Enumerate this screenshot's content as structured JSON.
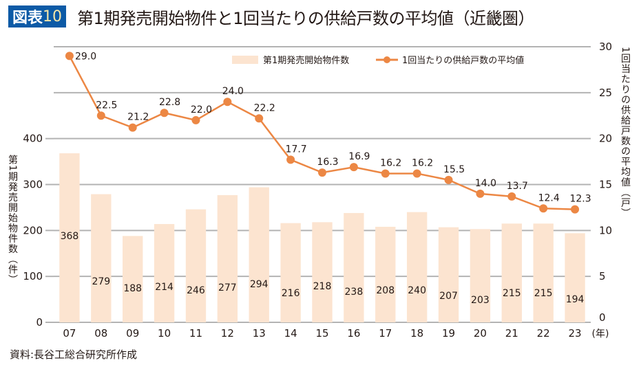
{
  "header": {
    "badge_label": "図表",
    "badge_number": "10",
    "title": "第1期発売開始物件と1回当たりの供給戸数の平均値（近畿圏）"
  },
  "source_note": "資料:長谷工総合研究所作成",
  "colors": {
    "bar": "#fce4d0",
    "line": "#ec8744",
    "grid": "#b3b3b3",
    "badge_bg": "#0c5aa6",
    "text": "#231815"
  },
  "chart_data": {
    "type": "bar+line",
    "title": "第1期発売開始物件と1回当たりの供給戸数の平均値（近畿圏）",
    "categories": [
      "07",
      "08",
      "09",
      "10",
      "11",
      "12",
      "13",
      "14",
      "15",
      "16",
      "17",
      "18",
      "19",
      "20",
      "21",
      "22",
      "23"
    ],
    "x_unit_label": "(年)",
    "series": [
      {
        "name": "第1期発売開始物件数",
        "type": "bar",
        "axis": "left",
        "values": [
          368,
          279,
          188,
          214,
          246,
          277,
          294,
          216,
          218,
          238,
          208,
          240,
          207,
          203,
          215,
          215,
          194
        ],
        "labels": [
          "368",
          "279",
          "188",
          "214",
          "246",
          "277",
          "294",
          "216",
          "218",
          "238",
          "208",
          "240",
          "207",
          "203",
          "215",
          "215",
          "194"
        ]
      },
      {
        "name": "1回当たりの供給戸数の平均値",
        "type": "line",
        "axis": "right",
        "values": [
          29.0,
          22.5,
          21.2,
          22.8,
          22.0,
          24.0,
          22.2,
          17.7,
          16.3,
          16.9,
          16.2,
          16.2,
          15.5,
          14.0,
          13.7,
          12.4,
          12.3
        ],
        "labels": [
          "29.0",
          "22.5",
          "21.2",
          "22.8",
          "22.0",
          "24.0",
          "22.2",
          "17.7",
          "16.3",
          "16.9",
          "16.2",
          "16.2",
          "15.5",
          "14.0",
          "13.7",
          "12.4",
          "12.3"
        ]
      }
    ],
    "left_axis": {
      "label": "第1期発売開始物件数（件）",
      "ticks": [
        "0",
        "100",
        "200",
        "300",
        "400"
      ],
      "tick_values": [
        0,
        100,
        200,
        300,
        400
      ],
      "range": [
        0,
        600
      ]
    },
    "right_axis": {
      "label": "1回当たりの供給戸数の平均値（戸）",
      "ticks": [
        "0",
        "5",
        "10",
        "15",
        "20",
        "25",
        "30"
      ],
      "tick_values": [
        0,
        5,
        10,
        15,
        20,
        25,
        30
      ],
      "range": [
        0,
        30
      ]
    },
    "grid": true,
    "legend_position": "top-right",
    "legend": [
      {
        "label": "第1期発売開始物件数",
        "kind": "bar"
      },
      {
        "label": "1回当たりの供給戸数の平均値",
        "kind": "line"
      }
    ]
  }
}
